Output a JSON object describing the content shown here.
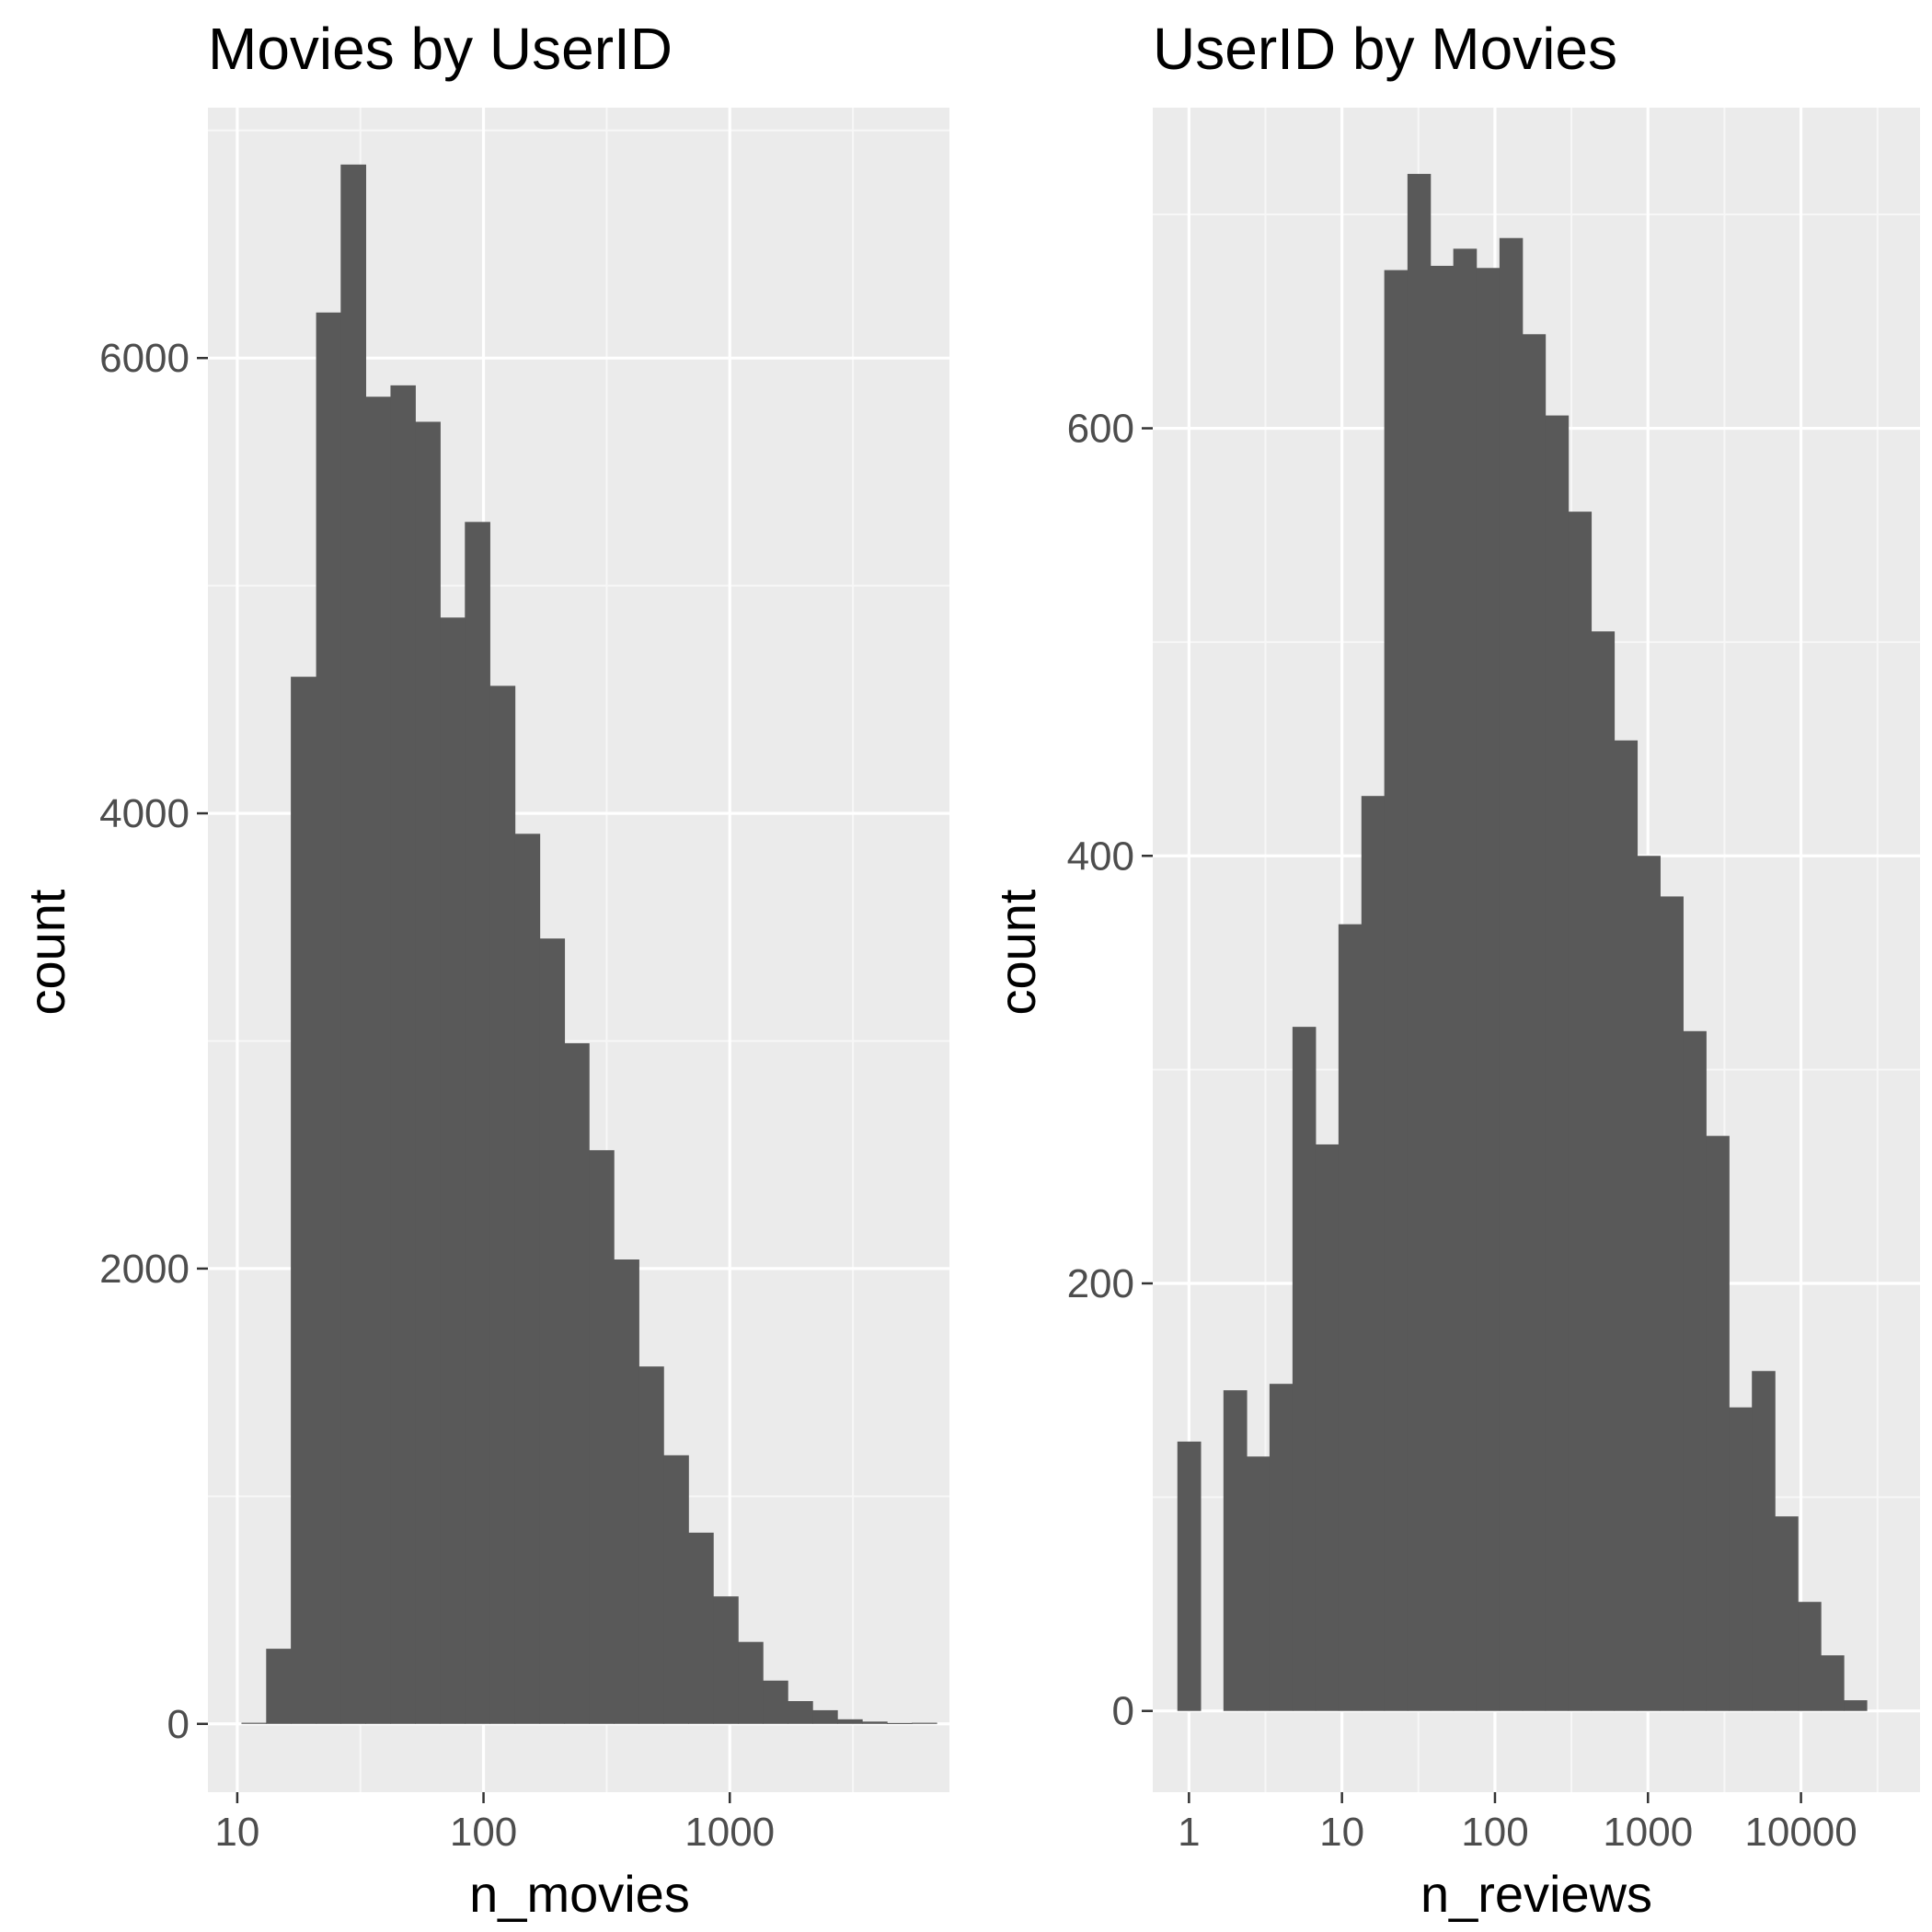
{
  "colors": {
    "panel_background": "#ebebeb",
    "major_grid": "#ffffff",
    "minor_grid": "#f7f7f7",
    "bar_fill": "#595959",
    "tick_mark": "#333333",
    "tick_text": "#4d4d4d",
    "title_text": "#000000"
  },
  "chart_data": [
    {
      "type": "bar",
      "subtype": "histogram",
      "title": "Movies by UserID",
      "xlabel": "n_movies",
      "ylabel": "count",
      "x_scale": "log10",
      "grid": true,
      "xlim": [
        7.6,
        7800
      ],
      "ylim": [
        -300,
        7100
      ],
      "x_ticks": [
        10,
        100,
        1000
      ],
      "x_tick_labels": [
        "10",
        "100",
        "1000"
      ],
      "y_ticks": [
        0,
        2000,
        4000,
        6000
      ],
      "y_tick_labels": [
        "0",
        "2000",
        "4000",
        "6000"
      ],
      "bins": [
        {
          "x0": 10.4,
          "x1": 13.1,
          "count": 5
        },
        {
          "x0": 13.1,
          "x1": 16.5,
          "count": 330
        },
        {
          "x0": 16.5,
          "x1": 20.9,
          "count": 4600
        },
        {
          "x0": 20.9,
          "x1": 26.3,
          "count": 6200
        },
        {
          "x0": 26.3,
          "x1": 33.2,
          "count": 6850
        },
        {
          "x0": 33.2,
          "x1": 41.9,
          "count": 5830
        },
        {
          "x0": 41.9,
          "x1": 52.8,
          "count": 5880
        },
        {
          "x0": 52.8,
          "x1": 66.6,
          "count": 5720
        },
        {
          "x0": 66.6,
          "x1": 84.0,
          "count": 4860
        },
        {
          "x0": 84.0,
          "x1": 106,
          "count": 5280
        },
        {
          "x0": 106,
          "x1": 134,
          "count": 4560
        },
        {
          "x0": 134,
          "x1": 169,
          "count": 3910
        },
        {
          "x0": 169,
          "x1": 213,
          "count": 3450
        },
        {
          "x0": 213,
          "x1": 268,
          "count": 2990
        },
        {
          "x0": 268,
          "x1": 338,
          "count": 2520
        },
        {
          "x0": 338,
          "x1": 427,
          "count": 2040
        },
        {
          "x0": 427,
          "x1": 538,
          "count": 1570
        },
        {
          "x0": 538,
          "x1": 679,
          "count": 1180
        },
        {
          "x0": 679,
          "x1": 856,
          "count": 840
        },
        {
          "x0": 856,
          "x1": 1080,
          "count": 560
        },
        {
          "x0": 1080,
          "x1": 1362,
          "count": 360
        },
        {
          "x0": 1362,
          "x1": 1718,
          "count": 190
        },
        {
          "x0": 1718,
          "x1": 2167,
          "count": 100
        },
        {
          "x0": 2167,
          "x1": 2733,
          "count": 60
        },
        {
          "x0": 2733,
          "x1": 3447,
          "count": 20
        },
        {
          "x0": 3447,
          "x1": 4348,
          "count": 10
        },
        {
          "x0": 4348,
          "x1": 5484,
          "count": 4
        },
        {
          "x0": 5484,
          "x1": 6917,
          "count": 5
        }
      ]
    },
    {
      "type": "bar",
      "subtype": "histogram",
      "title": "UserID by Movies",
      "xlabel": "n_reviews",
      "ylabel": "count",
      "x_scale": "log10",
      "grid": true,
      "xlim": [
        0.58,
        60000
      ],
      "ylim": [
        -38,
        750
      ],
      "x_ticks": [
        1,
        10,
        100,
        1000,
        10000
      ],
      "x_tick_labels": [
        "1",
        "10",
        "100",
        "1000",
        "10000"
      ],
      "y_ticks": [
        0,
        200,
        400,
        600
      ],
      "y_tick_labels": [
        "0",
        "200",
        "400",
        "600"
      ],
      "bins": [
        {
          "x0": 0.84,
          "x1": 1.19,
          "count": 126
        },
        {
          "x0": 1.19,
          "x1": 1.68,
          "count": 0
        },
        {
          "x0": 1.68,
          "x1": 2.38,
          "count": 150
        },
        {
          "x0": 2.38,
          "x1": 3.36,
          "count": 119
        },
        {
          "x0": 3.36,
          "x1": 4.75,
          "count": 153
        },
        {
          "x0": 4.75,
          "x1": 6.71,
          "count": 320
        },
        {
          "x0": 6.71,
          "x1": 9.49,
          "count": 265
        },
        {
          "x0": 9.49,
          "x1": 13.4,
          "count": 368
        },
        {
          "x0": 13.4,
          "x1": 18.9,
          "count": 428
        },
        {
          "x0": 18.9,
          "x1": 26.8,
          "count": 674
        },
        {
          "x0": 26.8,
          "x1": 37.8,
          "count": 719
        },
        {
          "x0": 37.8,
          "x1": 53.4,
          "count": 676
        },
        {
          "x0": 53.4,
          "x1": 75.5,
          "count": 684
        },
        {
          "x0": 75.5,
          "x1": 107,
          "count": 675
        },
        {
          "x0": 107,
          "x1": 151,
          "count": 689
        },
        {
          "x0": 151,
          "x1": 213,
          "count": 644
        },
        {
          "x0": 213,
          "x1": 301,
          "count": 606
        },
        {
          "x0": 301,
          "x1": 425,
          "count": 561
        },
        {
          "x0": 425,
          "x1": 601,
          "count": 505
        },
        {
          "x0": 601,
          "x1": 849,
          "count": 454
        },
        {
          "x0": 849,
          "x1": 1199,
          "count": 400
        },
        {
          "x0": 1199,
          "x1": 1694,
          "count": 381
        },
        {
          "x0": 1694,
          "x1": 2393,
          "count": 318
        },
        {
          "x0": 2393,
          "x1": 3381,
          "count": 269
        },
        {
          "x0": 3381,
          "x1": 4776,
          "count": 142
        },
        {
          "x0": 4776,
          "x1": 6747,
          "count": 159
        },
        {
          "x0": 6747,
          "x1": 9532,
          "count": 91
        },
        {
          "x0": 9532,
          "x1": 13466,
          "count": 51
        },
        {
          "x0": 13466,
          "x1": 19023,
          "count": 26
        },
        {
          "x0": 19023,
          "x1": 26874,
          "count": 5
        }
      ]
    }
  ]
}
